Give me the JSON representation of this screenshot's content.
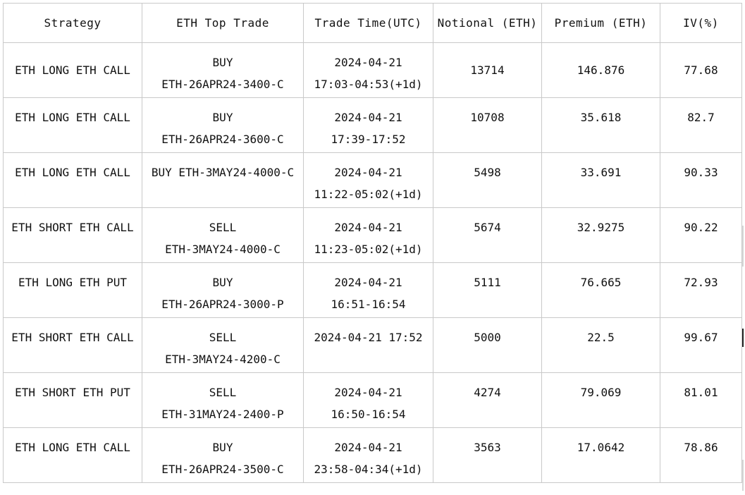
{
  "table": {
    "headers": [
      "Strategy",
      "ETH Top Trade",
      "Trade Time(UTC)",
      "Notional (ETH)",
      "Premium (ETH)",
      "IV(%)"
    ],
    "rows": [
      {
        "strategy": "ETH LONG ETH CALL",
        "trade": [
          "BUY",
          "ETH-26APR24-3400-C"
        ],
        "time": [
          "2024-04-21",
          "17:03-04:53(+1d)"
        ],
        "notional": "13714",
        "premium": "146.876",
        "iv": "77.68"
      },
      {
        "strategy": "ETH LONG ETH CALL",
        "trade": [
          "BUY",
          "ETH-26APR24-3600-C"
        ],
        "time": [
          "2024-04-21",
          "17:39-17:52"
        ],
        "notional": "10708",
        "premium": "35.618",
        "iv": "82.7"
      },
      {
        "strategy": "ETH LONG ETH CALL",
        "trade": [
          "BUY ETH-3MAY24-4000-C",
          ""
        ],
        "time": [
          "2024-04-21",
          "11:22-05:02(+1d)"
        ],
        "notional": "5498",
        "premium": "33.691",
        "iv": "90.33"
      },
      {
        "strategy": "ETH SHORT ETH CALL",
        "trade": [
          "SELL",
          "ETH-3MAY24-4000-C"
        ],
        "time": [
          "2024-04-21",
          "11:23-05:02(+1d)"
        ],
        "notional": "5674",
        "premium": "32.9275",
        "iv": "90.22"
      },
      {
        "strategy": "ETH LONG ETH PUT",
        "trade": [
          "BUY",
          "ETH-26APR24-3000-P"
        ],
        "time": [
          "2024-04-21",
          "16:51-16:54"
        ],
        "notional": "5111",
        "premium": "76.665",
        "iv": "72.93"
      },
      {
        "strategy": "ETH SHORT ETH CALL",
        "trade": [
          "SELL",
          "ETH-3MAY24-4200-C"
        ],
        "time": [
          "2024-04-21 17:52",
          ""
        ],
        "notional": "5000",
        "premium": "22.5",
        "iv": "99.67"
      },
      {
        "strategy": "ETH SHORT ETH PUT",
        "trade": [
          "SELL",
          "ETH-31MAY24-2400-P"
        ],
        "time": [
          "2024-04-21",
          "16:50-16:54"
        ],
        "notional": "4274",
        "premium": "79.069",
        "iv": "81.01"
      },
      {
        "strategy": "ETH LONG ETH CALL",
        "trade": [
          "BUY",
          "ETH-26APR24-3500-C"
        ],
        "time": [
          "2024-04-21",
          "23:58-04:34(+1d)"
        ],
        "notional": "3563",
        "premium": "17.0642",
        "iv": "78.86"
      }
    ]
  }
}
